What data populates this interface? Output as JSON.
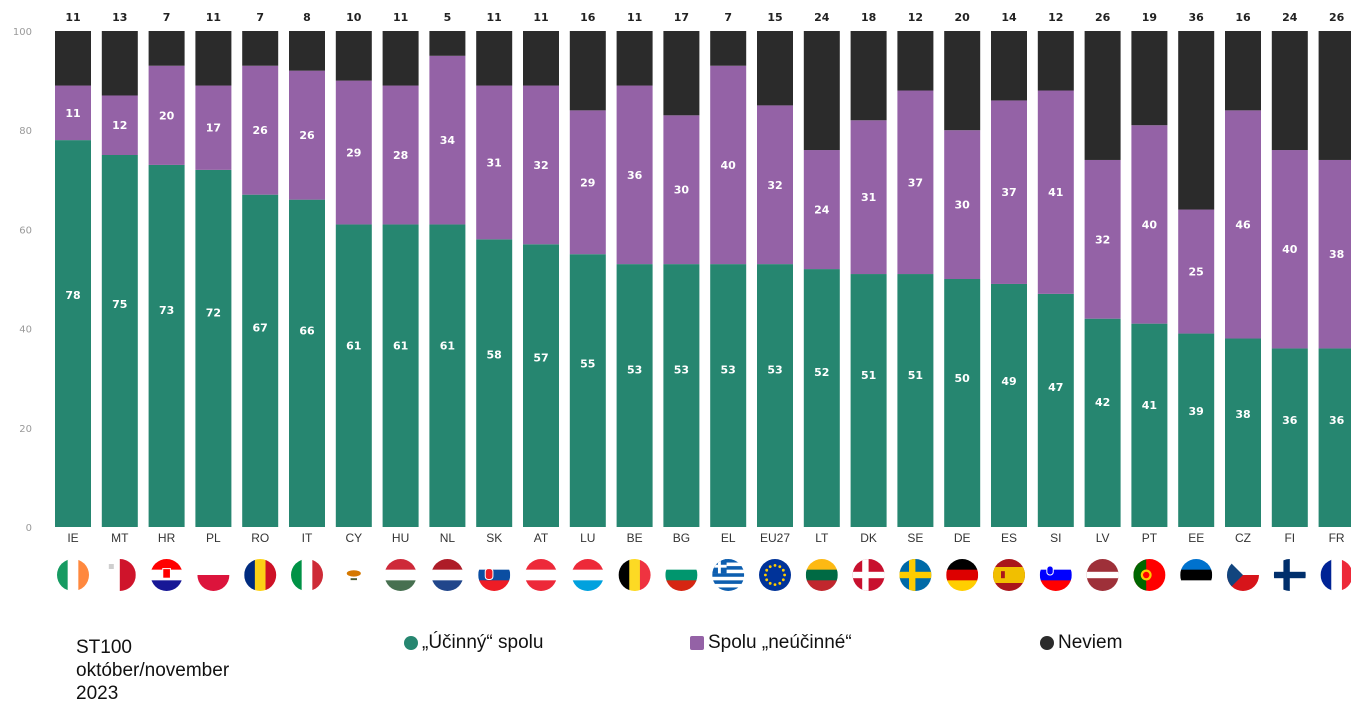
{
  "colors": {
    "effective": "#268670",
    "ineffective": "#9462a6",
    "dont_know": "#2b2b2b"
  },
  "chart_data": {
    "type": "bar",
    "stacked": true,
    "categories": [
      "IE",
      "MT",
      "HR",
      "PL",
      "RO",
      "IT",
      "CY",
      "HU",
      "NL",
      "SK",
      "AT",
      "LU",
      "BE",
      "BG",
      "EL",
      "EU27",
      "LT",
      "DK",
      "SE",
      "DE",
      "ES",
      "SI",
      "LV",
      "PT",
      "EE",
      "CZ",
      "FI",
      "FR"
    ],
    "series": [
      {
        "name": "„Účinný“ spolu",
        "values": [
          78,
          75,
          73,
          72,
          67,
          66,
          61,
          61,
          61,
          58,
          57,
          55,
          53,
          53,
          53,
          53,
          52,
          51,
          51,
          50,
          49,
          47,
          42,
          41,
          39,
          38,
          36,
          36
        ]
      },
      {
        "name": "Spolu „neúčinné“",
        "values": [
          11,
          12,
          20,
          17,
          26,
          26,
          29,
          28,
          34,
          31,
          32,
          29,
          36,
          30,
          40,
          32,
          24,
          31,
          37,
          30,
          37,
          41,
          32,
          40,
          25,
          46,
          40,
          38
        ]
      },
      {
        "name": "Neviem",
        "values": [
          11,
          13,
          7,
          11,
          7,
          8,
          10,
          11,
          5,
          11,
          11,
          16,
          11,
          17,
          7,
          15,
          24,
          18,
          12,
          20,
          14,
          12,
          26,
          19,
          36,
          16,
          24,
          26
        ]
      }
    ],
    "ylim": [
      0,
      100
    ],
    "yticks": [
      0,
      20,
      40,
      60,
      80,
      100
    ],
    "legend_position": "bottom",
    "grid": false
  },
  "footer": {
    "source": "ST100\noktóber/november\n2023"
  },
  "flags": [
    "ireland-flag-icon",
    "malta-flag-icon",
    "croatia-flag-icon",
    "poland-flag-icon",
    "romania-flag-icon",
    "italy-flag-icon",
    "cyprus-flag-icon",
    "hungary-flag-icon",
    "netherlands-flag-icon",
    "slovakia-flag-icon",
    "austria-flag-icon",
    "luxembourg-flag-icon",
    "belgium-flag-icon",
    "bulgaria-flag-icon",
    "greece-flag-icon",
    "eu-flag-icon",
    "lithuania-flag-icon",
    "denmark-flag-icon",
    "sweden-flag-icon",
    "germany-flag-icon",
    "spain-flag-icon",
    "slovenia-flag-icon",
    "latvia-flag-icon",
    "portugal-flag-icon",
    "estonia-flag-icon",
    "czechia-flag-icon",
    "finland-flag-icon",
    "france-flag-icon"
  ]
}
